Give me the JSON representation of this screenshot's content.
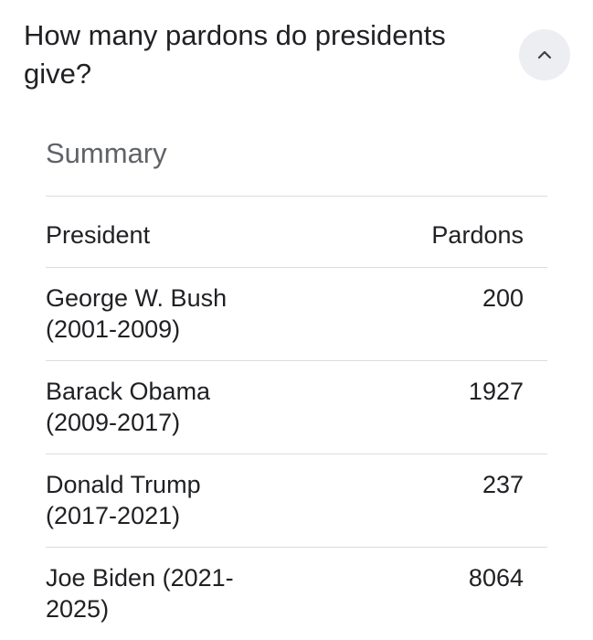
{
  "question": {
    "title": "How many pardons do presidents give?"
  },
  "summary": {
    "heading": "Summary"
  },
  "table": {
    "columns": [
      "President",
      "Pardons"
    ],
    "rows": [
      {
        "name_line1": "George W. Bush",
        "name_line2": "(2001-2009)",
        "pardons": "200"
      },
      {
        "name_line1": "Barack Obama",
        "name_line2": "(2009-2017)",
        "pardons": "1927"
      },
      {
        "name_line1": "Donald Trump",
        "name_line2": "(2017-2021)",
        "pardons": "237"
      },
      {
        "name_line1": "Joe Biden (2021-",
        "name_line2": "2025)",
        "pardons": "8064"
      }
    ]
  },
  "icons": {
    "collapse": "chevron-up-icon"
  },
  "colors": {
    "text": "#202124",
    "muted": "#5f6368",
    "divider": "#dadce0",
    "button_bg": "#eceef1"
  }
}
